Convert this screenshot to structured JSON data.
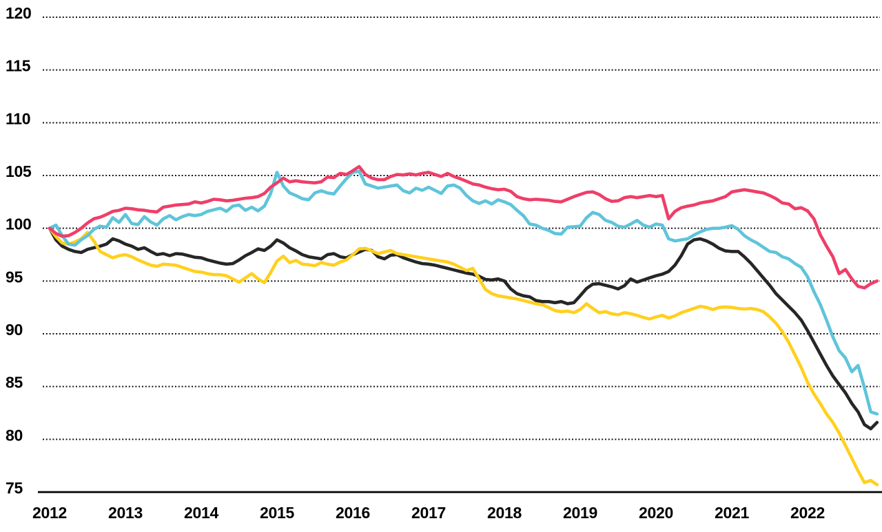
{
  "chart_data": {
    "type": "line",
    "title": "",
    "xlabel": "",
    "ylabel": "",
    "legend": "none",
    "grid": "horizontal-dotted",
    "background": "#ffffff",
    "gridline_color": "#111111",
    "axis_line_color": "#000000",
    "x_axis": {
      "tick_labels": [
        "2012",
        "2013",
        "2014",
        "2015",
        "2016",
        "2017",
        "2018",
        "2019",
        "2020",
        "2021",
        "2022"
      ],
      "start_month": "2012-01",
      "end_month": "2022-12",
      "points_per_year": 12
    },
    "y_axis": {
      "min": 75,
      "max": 120,
      "step": 5,
      "tick_labels": [
        "120",
        "115",
        "110",
        "105",
        "100",
        "95",
        "90",
        "85",
        "80",
        "75"
      ]
    },
    "baseline_value": 100,
    "series": [
      {
        "name": "black-line",
        "color": "#262626",
        "values": [
          100.0,
          98.9,
          98.3,
          98.0,
          97.8,
          97.7,
          98.0,
          98.15,
          98.3,
          98.5,
          99.0,
          98.8,
          98.5,
          98.3,
          98.0,
          98.15,
          97.8,
          97.5,
          97.6,
          97.4,
          97.6,
          97.55,
          97.4,
          97.25,
          97.2,
          97.0,
          96.85,
          96.7,
          96.6,
          96.65,
          97.0,
          97.4,
          97.7,
          98.05,
          97.9,
          98.3,
          98.9,
          98.6,
          98.15,
          97.85,
          97.5,
          97.3,
          97.2,
          97.1,
          97.5,
          97.6,
          97.3,
          97.2,
          97.5,
          97.75,
          98.0,
          97.9,
          97.3,
          97.1,
          97.45,
          97.5,
          97.2,
          97.0,
          96.8,
          96.65,
          96.6,
          96.5,
          96.35,
          96.2,
          96.05,
          95.9,
          95.75,
          95.65,
          95.45,
          95.15,
          95.1,
          95.2,
          95.0,
          94.25,
          93.8,
          93.6,
          93.5,
          93.15,
          93.05,
          93.05,
          92.95,
          93.05,
          92.85,
          92.95,
          93.6,
          94.3,
          94.7,
          94.75,
          94.6,
          94.45,
          94.25,
          94.55,
          95.2,
          94.9,
          95.1,
          95.3,
          95.5,
          95.65,
          95.9,
          96.5,
          97.4,
          98.5,
          98.9,
          99.0,
          98.8,
          98.5,
          98.1,
          97.85,
          97.8,
          97.8,
          97.3,
          96.7,
          96.0,
          95.3,
          94.6,
          93.8,
          93.2,
          92.6,
          92.0,
          91.3,
          90.3,
          89.2,
          88.1,
          87.0,
          86.0,
          85.2,
          84.4,
          83.4,
          82.6,
          81.4,
          81.0,
          81.6
        ]
      },
      {
        "name": "yellow-line",
        "color": "#ffd01e",
        "values": [
          100.0,
          99.2,
          98.6,
          98.5,
          98.7,
          99.0,
          99.6,
          98.8,
          97.8,
          97.5,
          97.2,
          97.4,
          97.5,
          97.3,
          97.0,
          96.75,
          96.5,
          96.4,
          96.6,
          96.55,
          96.5,
          96.3,
          96.1,
          95.9,
          95.85,
          95.7,
          95.6,
          95.6,
          95.5,
          95.2,
          94.9,
          95.3,
          95.7,
          95.2,
          94.85,
          95.8,
          96.9,
          97.35,
          96.75,
          96.95,
          96.6,
          96.55,
          96.45,
          96.75,
          96.6,
          96.5,
          96.8,
          97.0,
          97.5,
          98.05,
          98.1,
          97.85,
          97.6,
          97.75,
          97.9,
          97.6,
          97.5,
          97.4,
          97.3,
          97.2,
          97.1,
          97.0,
          96.9,
          96.8,
          96.6,
          96.3,
          96.0,
          96.2,
          95.2,
          94.2,
          93.8,
          93.6,
          93.5,
          93.4,
          93.3,
          93.15,
          93.0,
          92.85,
          92.75,
          92.5,
          92.2,
          92.1,
          92.15,
          92.0,
          92.3,
          92.85,
          92.4,
          92.0,
          92.1,
          91.9,
          91.8,
          92.0,
          91.9,
          91.75,
          91.55,
          91.4,
          91.6,
          91.75,
          91.5,
          91.7,
          92.0,
          92.2,
          92.4,
          92.6,
          92.5,
          92.3,
          92.5,
          92.55,
          92.5,
          92.4,
          92.35,
          92.4,
          92.3,
          92.1,
          91.6,
          91.0,
          90.2,
          89.2,
          88.0,
          86.8,
          85.4,
          84.3,
          83.4,
          82.4,
          81.6,
          80.6,
          79.4,
          78.2,
          77.0,
          75.9,
          76.1,
          75.7
        ]
      },
      {
        "name": "cyan-line",
        "color": "#5fc4da",
        "values": [
          100.0,
          100.3,
          99.3,
          98.5,
          98.4,
          98.9,
          99.3,
          99.9,
          100.2,
          100.1,
          101.0,
          100.55,
          101.3,
          100.45,
          100.35,
          101.1,
          100.6,
          100.3,
          100.9,
          101.2,
          100.8,
          101.1,
          101.3,
          101.2,
          101.3,
          101.6,
          101.75,
          101.9,
          101.6,
          102.1,
          102.2,
          101.7,
          102.0,
          101.65,
          102.1,
          103.3,
          105.3,
          104.0,
          103.35,
          103.1,
          102.8,
          102.7,
          103.35,
          103.55,
          103.35,
          103.25,
          104.0,
          104.7,
          105.3,
          105.4,
          104.2,
          104.0,
          103.8,
          103.9,
          104.0,
          104.1,
          103.55,
          103.35,
          103.8,
          103.6,
          103.9,
          103.6,
          103.3,
          104.0,
          104.1,
          103.8,
          103.1,
          102.6,
          102.35,
          102.6,
          102.3,
          102.7,
          102.5,
          102.25,
          101.7,
          101.2,
          100.4,
          100.3,
          100.0,
          99.8,
          99.5,
          99.45,
          100.1,
          100.15,
          100.2,
          101.0,
          101.5,
          101.3,
          100.75,
          100.55,
          100.2,
          100.1,
          100.4,
          100.75,
          100.3,
          100.1,
          100.4,
          100.3,
          99.0,
          98.8,
          98.9,
          99.0,
          99.35,
          99.65,
          99.9,
          100.0,
          100.0,
          100.1,
          100.25,
          99.9,
          99.3,
          98.9,
          98.6,
          98.2,
          97.8,
          97.7,
          97.3,
          97.1,
          96.65,
          96.3,
          95.4,
          94.0,
          92.8,
          91.3,
          89.7,
          88.4,
          87.7,
          86.4,
          87.0,
          84.9,
          82.6,
          82.4
        ]
      },
      {
        "name": "pink-line",
        "color": "#ee3f68",
        "values": [
          100.0,
          99.5,
          99.25,
          99.3,
          99.6,
          100.0,
          100.5,
          100.9,
          101.05,
          101.3,
          101.6,
          101.7,
          101.9,
          101.85,
          101.75,
          101.7,
          101.6,
          101.55,
          102.0,
          102.1,
          102.2,
          102.25,
          102.3,
          102.5,
          102.4,
          102.55,
          102.75,
          102.7,
          102.6,
          102.65,
          102.75,
          102.85,
          102.9,
          103.0,
          103.3,
          103.9,
          104.3,
          104.75,
          104.4,
          104.5,
          104.4,
          104.35,
          104.3,
          104.4,
          104.85,
          104.8,
          105.2,
          105.1,
          105.45,
          105.85,
          105.1,
          104.75,
          104.6,
          104.6,
          104.9,
          105.1,
          105.05,
          105.15,
          105.05,
          105.2,
          105.3,
          105.1,
          104.9,
          105.2,
          104.9,
          104.7,
          104.45,
          104.2,
          104.1,
          103.9,
          103.75,
          103.65,
          103.7,
          103.5,
          103.0,
          102.8,
          102.7,
          102.75,
          102.7,
          102.65,
          102.55,
          102.5,
          102.75,
          103.0,
          103.2,
          103.4,
          103.45,
          103.2,
          102.8,
          102.55,
          102.6,
          102.9,
          103.0,
          102.9,
          103.0,
          103.1,
          103.0,
          103.1,
          100.9,
          101.6,
          101.95,
          102.1,
          102.2,
          102.4,
          102.5,
          102.6,
          102.8,
          103.0,
          103.45,
          103.55,
          103.65,
          103.55,
          103.45,
          103.35,
          103.1,
          102.8,
          102.4,
          102.3,
          101.85,
          101.95,
          101.65,
          100.9,
          99.4,
          98.3,
          97.3,
          95.7,
          96.1,
          95.2,
          94.5,
          94.35,
          94.75,
          95.0
        ]
      }
    ]
  }
}
